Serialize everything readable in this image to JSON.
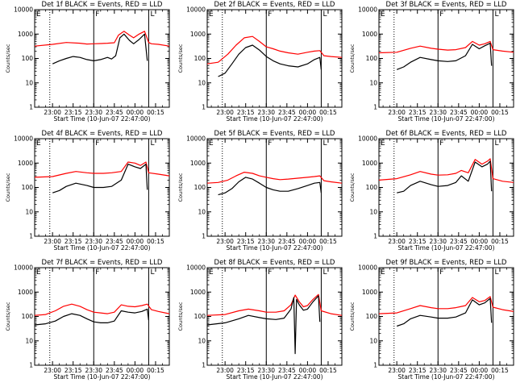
{
  "chart_data": [
    {
      "type": "line",
      "title": "Det 1f BLACK = Events, RED = LLD",
      "xlabel": "Start Time (10-Jun-07 22:47:00)",
      "ylabel": "Counts/sec",
      "x_ticks": [
        "23:00",
        "23:15",
        "23:30",
        "23:45",
        "00:00",
        "00:15"
      ],
      "y_ticks": [
        "1",
        "10",
        "100",
        "1000",
        "10000"
      ],
      "ylim": [
        1,
        10000
      ],
      "yscale": "log",
      "xlim": [
        "22:47",
        "00:25"
      ],
      "markers": [
        "E",
        "F",
        "L"
      ],
      "series": [
        {
          "color": "#ff0000",
          "x": [
            "22:47",
            "23:00",
            "23:10",
            "23:20",
            "23:25",
            "23:30",
            "23:35",
            "23:40",
            "23:45",
            "23:48",
            "23:52",
            "23:56",
            "23:59",
            "00:03",
            "00:07",
            "00:10",
            "00:12",
            "00:17",
            "00:25"
          ],
          "values": [
            320,
            380,
            450,
            420,
            390,
            400,
            410,
            420,
            440,
            900,
            1300,
            900,
            700,
            1000,
            1300,
            450,
            400,
            380,
            320
          ]
        },
        {
          "color": "#000000",
          "x": [
            "23:00",
            "23:05",
            "23:10",
            "23:15",
            "23:20",
            "23:25",
            "23:30",
            "23:35",
            "23:40",
            "23:43",
            "23:46",
            "23:49",
            "23:52",
            "23:56",
            "23:59",
            "00:03",
            "00:07",
            "00:09"
          ],
          "values": [
            60,
            80,
            100,
            120,
            110,
            90,
            80,
            90,
            110,
            95,
            130,
            700,
            1000,
            550,
            400,
            600,
            1000,
            80
          ]
        }
      ]
    },
    {
      "type": "line",
      "title": "Det 2f BLACK = Events, RED = LLD",
      "xlabel": "Start Time (10-Jun-07 22:47:00)",
      "ylabel": "Counts/sec",
      "x_ticks": [
        "23:00",
        "23:15",
        "23:30",
        "23:45",
        "00:00",
        "00:15"
      ],
      "y_ticks": [
        "1",
        "10",
        "100",
        "1000",
        "10000"
      ],
      "ylim": [
        1,
        10000
      ],
      "yscale": "log",
      "xlim": [
        "22:47",
        "00:25"
      ],
      "markers": [
        "E",
        "F",
        "L"
      ],
      "series": [
        {
          "color": "#ff0000",
          "x": [
            "22:47",
            "22:55",
            "23:02",
            "23:08",
            "23:14",
            "23:20",
            "23:25",
            "23:30",
            "23:35",
            "23:40",
            "23:46",
            "23:53",
            "00:00",
            "00:05",
            "00:09",
            "00:12",
            "00:17",
            "00:25"
          ],
          "values": [
            60,
            70,
            150,
            350,
            700,
            800,
            500,
            300,
            250,
            200,
            170,
            150,
            180,
            200,
            210,
            130,
            120,
            110
          ]
        },
        {
          "color": "#000000",
          "x": [
            "22:55",
            "23:00",
            "23:05",
            "23:10",
            "23:15",
            "23:20",
            "23:25",
            "23:30",
            "23:35",
            "23:40",
            "23:46",
            "23:53",
            "00:00",
            "00:05",
            "00:09",
            "00:10"
          ],
          "values": [
            18,
            25,
            60,
            150,
            280,
            350,
            220,
            120,
            80,
            60,
            50,
            45,
            60,
            90,
            110,
            35
          ]
        }
      ]
    },
    {
      "type": "line",
      "title": "Det 3f BLACK = Events, RED = LLD",
      "xlabel": "Start Time (10-Jun-07 22:47:00)",
      "ylabel": "Counts/sec",
      "x_ticks": [
        "23:00",
        "23:15",
        "23:30",
        "23:45",
        "00:00",
        "00:15"
      ],
      "y_ticks": [
        "1",
        "10",
        "100",
        "1000",
        "10000"
      ],
      "ylim": [
        1,
        10000
      ],
      "yscale": "log",
      "xlim": [
        "22:47",
        "00:25"
      ],
      "markers": [
        "E",
        "F",
        "L"
      ],
      "series": [
        {
          "color": "#ff0000",
          "x": [
            "22:47",
            "23:00",
            "23:10",
            "23:17",
            "23:25",
            "23:30",
            "23:37",
            "23:43",
            "23:50",
            "23:55",
            "00:00",
            "00:04",
            "00:08",
            "00:10",
            "00:17",
            "00:25"
          ],
          "values": [
            170,
            180,
            260,
            320,
            260,
            240,
            220,
            230,
            280,
            500,
            350,
            400,
            500,
            230,
            200,
            180
          ]
        },
        {
          "color": "#000000",
          "x": [
            "23:00",
            "23:05",
            "23:10",
            "23:17",
            "23:25",
            "23:30",
            "23:37",
            "23:43",
            "23:50",
            "23:55",
            "00:00",
            "00:04",
            "00:08",
            "00:09"
          ],
          "values": [
            35,
            45,
            70,
            110,
            90,
            80,
            75,
            80,
            130,
            380,
            250,
            330,
            420,
            50
          ]
        }
      ]
    },
    {
      "type": "line",
      "title": "Det 4f BLACK = Events, RED = LLD",
      "xlabel": "Start Time (10-Jun-07 22:47:00)",
      "ylabel": "Counts/sec",
      "x_ticks": [
        "23:00",
        "23:15",
        "23:30",
        "23:45",
        "00:00",
        "00:15"
      ],
      "y_ticks": [
        "1",
        "10",
        "100",
        "1000",
        "10000"
      ],
      "ylim": [
        1,
        10000
      ],
      "yscale": "log",
      "xlim": [
        "22:47",
        "00:25"
      ],
      "markers": [
        "E",
        "F",
        "L"
      ],
      "series": [
        {
          "color": "#ff0000",
          "x": [
            "22:47",
            "23:00",
            "23:10",
            "23:17",
            "23:25",
            "23:30",
            "23:37",
            "23:43",
            "23:50",
            "23:55",
            "00:00",
            "00:04",
            "00:08",
            "00:10",
            "00:17",
            "00:25"
          ],
          "values": [
            260,
            280,
            380,
            450,
            400,
            380,
            380,
            400,
            450,
            1100,
            1000,
            800,
            1100,
            400,
            350,
            300
          ]
        },
        {
          "color": "#000000",
          "x": [
            "23:00",
            "23:05",
            "23:10",
            "23:17",
            "23:25",
            "23:30",
            "23:37",
            "23:43",
            "23:50",
            "23:55",
            "00:00",
            "00:04",
            "00:08",
            "00:09"
          ],
          "values": [
            60,
            75,
            110,
            150,
            120,
            100,
            100,
            110,
            200,
            900,
            700,
            600,
            900,
            80
          ]
        }
      ]
    },
    {
      "type": "line",
      "title": "Det 5f BLACK = Events, RED = LLD",
      "xlabel": "Start Time (10-Jun-07 22:47:00)",
      "ylabel": "Counts/sec",
      "x_ticks": [
        "23:00",
        "23:15",
        "23:30",
        "23:45",
        "00:00",
        "00:15"
      ],
      "y_ticks": [
        "1",
        "10",
        "100",
        "1000",
        "10000"
      ],
      "ylim": [
        1,
        10000
      ],
      "yscale": "log",
      "xlim": [
        "22:47",
        "00:25"
      ],
      "markers": [
        "E",
        "F",
        "L"
      ],
      "series": [
        {
          "color": "#ff0000",
          "x": [
            "22:47",
            "22:55",
            "23:02",
            "23:08",
            "23:14",
            "23:20",
            "23:25",
            "23:30",
            "23:35",
            "23:40",
            "23:46",
            "23:53",
            "00:00",
            "00:05",
            "00:09",
            "00:12",
            "00:17",
            "00:25"
          ],
          "values": [
            150,
            160,
            200,
            300,
            420,
            380,
            300,
            260,
            230,
            210,
            220,
            240,
            260,
            280,
            300,
            190,
            170,
            150
          ]
        },
        {
          "color": "#000000",
          "x": [
            "22:55",
            "23:00",
            "23:05",
            "23:10",
            "23:15",
            "23:20",
            "23:25",
            "23:30",
            "23:35",
            "23:40",
            "23:46",
            "23:53",
            "00:00",
            "00:05",
            "00:09",
            "00:10"
          ],
          "values": [
            50,
            60,
            90,
            170,
            260,
            220,
            150,
            100,
            80,
            70,
            70,
            90,
            120,
            150,
            160,
            60
          ]
        }
      ]
    },
    {
      "type": "line",
      "title": "Det 6f BLACK = Events, RED = LLD",
      "xlabel": "Start Time (10-Jun-07 22:47:00)",
      "ylabel": "Counts/sec",
      "x_ticks": [
        "23:00",
        "23:15",
        "23:30",
        "23:45",
        "00:00",
        "00:15"
      ],
      "y_ticks": [
        "1",
        "10",
        "100",
        "1000",
        "10000"
      ],
      "ylim": [
        1,
        10000
      ],
      "yscale": "log",
      "xlim": [
        "22:47",
        "00:25"
      ],
      "markers": [
        "E",
        "F",
        "L"
      ],
      "series": [
        {
          "color": "#ff0000",
          "x": [
            "22:47",
            "23:00",
            "23:10",
            "23:17",
            "23:25",
            "23:30",
            "23:37",
            "23:43",
            "23:47",
            "23:52",
            "23:57",
            "00:02",
            "00:06",
            "00:08",
            "00:10",
            "00:17",
            "00:25"
          ],
          "values": [
            200,
            230,
            330,
            450,
            350,
            320,
            330,
            380,
            500,
            400,
            1400,
            900,
            1200,
            1500,
            230,
            180,
            160
          ]
        },
        {
          "color": "#000000",
          "x": [
            "23:00",
            "23:05",
            "23:10",
            "23:17",
            "23:25",
            "23:30",
            "23:37",
            "23:43",
            "23:47",
            "23:52",
            "23:57",
            "00:02",
            "00:06",
            "00:08",
            "00:09"
          ],
          "values": [
            60,
            70,
            120,
            180,
            130,
            110,
            120,
            160,
            300,
            180,
            1100,
            700,
            900,
            1200,
            70
          ]
        }
      ]
    },
    {
      "type": "line",
      "title": "Det 7f BLACK = Events, RED = LLD",
      "xlabel": "Start Time (10-Jun-07 22:47:00)",
      "ylabel": "Counts/sec",
      "x_ticks": [
        "23:00",
        "23:15",
        "23:30",
        "23:45",
        "00:00",
        "00:15"
      ],
      "y_ticks": [
        "1",
        "10",
        "100",
        "1000",
        "10000"
      ],
      "ylim": [
        1,
        10000
      ],
      "yscale": "log",
      "xlim": [
        "22:47",
        "00:25"
      ],
      "markers": [
        "E",
        "F",
        "L"
      ],
      "series": [
        {
          "color": "#ff0000",
          "x": [
            "22:47",
            "22:55",
            "23:02",
            "23:08",
            "23:14",
            "23:20",
            "23:25",
            "23:30",
            "23:35",
            "23:40",
            "23:45",
            "23:50",
            "23:55",
            "00:00",
            "00:05",
            "00:09",
            "00:12",
            "00:17",
            "00:25"
          ],
          "values": [
            110,
            120,
            170,
            260,
            320,
            260,
            190,
            150,
            140,
            130,
            150,
            300,
            260,
            250,
            280,
            320,
            190,
            160,
            130
          ]
        },
        {
          "color": "#000000",
          "x": [
            "22:47",
            "22:55",
            "23:02",
            "23:08",
            "23:14",
            "23:20",
            "23:25",
            "23:30",
            "23:35",
            "23:40",
            "23:45",
            "23:50",
            "23:55",
            "00:00",
            "00:05",
            "00:09",
            "00:10"
          ],
          "values": [
            45,
            50,
            65,
            100,
            130,
            110,
            80,
            60,
            55,
            55,
            65,
            170,
            150,
            140,
            160,
            200,
            70
          ]
        }
      ]
    },
    {
      "type": "line",
      "title": "Det 8f BLACK = Events, RED = LLD",
      "xlabel": "Start Time (10-Jun-07 22:47:00)",
      "ylabel": "Counts/sec",
      "x_ticks": [
        "23:00",
        "23:15",
        "23:30",
        "23:45",
        "00:00",
        "00:15"
      ],
      "y_ticks": [
        "1",
        "10",
        "100",
        "1000",
        "10000"
      ],
      "ylim": [
        1,
        10000
      ],
      "yscale": "log",
      "xlim": [
        "22:47",
        "00:25"
      ],
      "markers": [
        "E",
        "F",
        "L"
      ],
      "series": [
        {
          "color": "#ff0000",
          "x": [
            "22:47",
            "23:00",
            "23:10",
            "23:17",
            "23:25",
            "23:30",
            "23:37",
            "23:43",
            "23:48",
            "23:51",
            "23:54",
            "23:57",
            "00:00",
            "00:04",
            "00:08",
            "00:10",
            "00:17",
            "00:25"
          ],
          "values": [
            110,
            120,
            170,
            200,
            170,
            150,
            150,
            170,
            300,
            750,
            400,
            250,
            280,
            500,
            800,
            170,
            130,
            110
          ]
        },
        {
          "color": "#000000",
          "x": [
            "22:47",
            "23:00",
            "23:10",
            "23:17",
            "23:25",
            "23:30",
            "23:37",
            "23:43",
            "23:48",
            "23:50",
            "23:51",
            "23:52",
            "23:54",
            "23:57",
            "00:00",
            "00:04",
            "00:08",
            "00:09"
          ],
          "values": [
            45,
            55,
            80,
            110,
            90,
            80,
            75,
            85,
            200,
            600,
            3,
            500,
            300,
            180,
            200,
            400,
            700,
            60
          ]
        }
      ]
    },
    {
      "type": "line",
      "title": "Det 9f BLACK = Events, RED = LLD",
      "xlabel": "Start Time (10-Jun-07 22:47:00)",
      "ylabel": "Counts/sec",
      "x_ticks": [
        "23:00",
        "23:15",
        "23:30",
        "23:45",
        "00:00",
        "00:15"
      ],
      "y_ticks": [
        "1",
        "10",
        "100",
        "1000",
        "10000"
      ],
      "ylim": [
        1,
        10000
      ],
      "yscale": "log",
      "xlim": [
        "22:47",
        "00:25"
      ],
      "markers": [
        "E",
        "F",
        "L"
      ],
      "series": [
        {
          "color": "#ff0000",
          "x": [
            "22:47",
            "23:00",
            "23:10",
            "23:17",
            "23:25",
            "23:30",
            "23:37",
            "23:43",
            "23:50",
            "23:55",
            "00:00",
            "00:04",
            "00:08",
            "00:10",
            "00:17",
            "00:25"
          ],
          "values": [
            130,
            140,
            210,
            280,
            230,
            210,
            210,
            230,
            280,
            600,
            400,
            450,
            650,
            240,
            190,
            160
          ]
        },
        {
          "color": "#000000",
          "x": [
            "23:00",
            "23:05",
            "23:10",
            "23:17",
            "23:25",
            "23:30",
            "23:37",
            "23:43",
            "23:50",
            "23:55",
            "00:00",
            "00:04",
            "00:08",
            "00:09"
          ],
          "values": [
            40,
            50,
            80,
            110,
            95,
            85,
            85,
            95,
            140,
            480,
            300,
            360,
            550,
            55
          ]
        }
      ]
    }
  ]
}
